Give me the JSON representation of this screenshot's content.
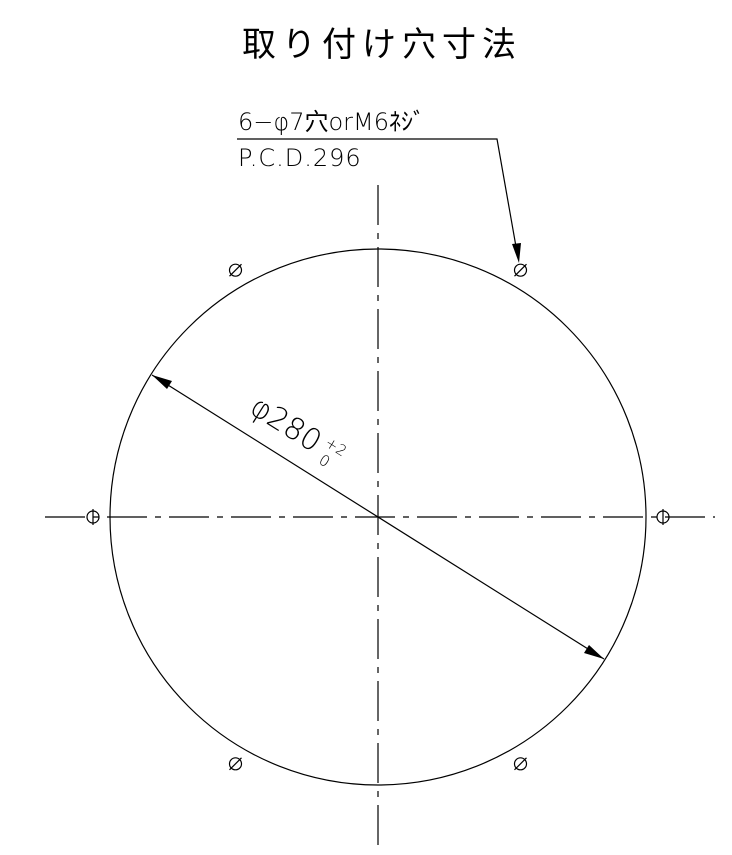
{
  "title": "取り付け穴寸法",
  "hole_note": {
    "line1": "6−φ7穴orM6ﾈｼﾞ",
    "line2": "P.C.D.296"
  },
  "dimension": {
    "label": "φ280",
    "tolerance_upper": "+2",
    "tolerance_lower": "0"
  }
}
